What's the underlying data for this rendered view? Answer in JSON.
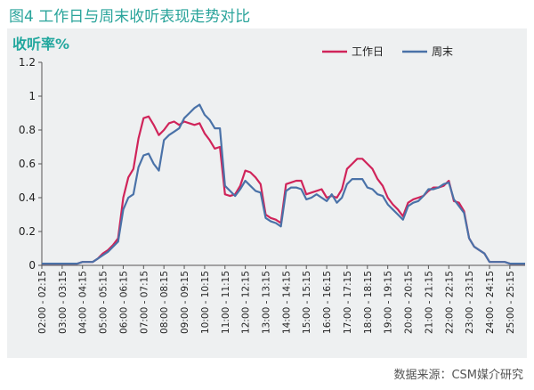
{
  "figure": {
    "title": "图4 工作日与周末收听表现走势对比",
    "source": "数据来源：CSM媒介研究"
  },
  "chart_data": {
    "type": "line",
    "title": "",
    "xlabel": "",
    "ylabel": "收听率%",
    "ylim": [
      0,
      1.2
    ],
    "yticks": [
      "0",
      "0.2",
      "0.4",
      "0.6",
      "0.8",
      "1",
      "1.2"
    ],
    "grid": false,
    "legend_position": "top-right",
    "x": [
      "02:00-02:15",
      "02:15-02:30",
      "02:30-02:45",
      "02:45-03:00",
      "03:00-03:15",
      "03:15-03:30",
      "03:30-03:45",
      "03:45-04:00",
      "04:00-04:15",
      "04:15-04:30",
      "04:30-04:45",
      "04:45-05:00",
      "05:00-05:15",
      "05:15-05:30",
      "05:30-05:45",
      "05:45-06:00",
      "06:00-06:15",
      "06:15-06:30",
      "06:30-06:45",
      "06:45-07:00",
      "07:00-07:15",
      "07:15-07:30",
      "07:30-07:45",
      "07:45-08:00",
      "08:00-08:15",
      "08:15-08:30",
      "08:30-08:45",
      "08:45-09:00",
      "09:00-09:15",
      "09:15-09:30",
      "09:30-09:45",
      "09:45-10:00",
      "10:00-10:15",
      "10:15-10:30",
      "10:30-10:45",
      "10:45-11:00",
      "11:00-11:15",
      "11:15-11:30",
      "11:30-11:45",
      "11:45-12:00",
      "12:00-12:15",
      "12:15-12:30",
      "12:30-12:45",
      "12:45-13:00",
      "13:00-13:15",
      "13:15-13:30",
      "13:30-13:45",
      "13:45-14:00",
      "14:00-14:15",
      "14:15-14:30",
      "14:30-14:45",
      "14:45-15:00",
      "15:00-15:15",
      "15:15-15:30",
      "15:30-15:45",
      "15:45-16:00",
      "16:00-16:15",
      "16:15-16:30",
      "16:30-16:45",
      "16:45-17:00",
      "17:00-17:15",
      "17:15-17:30",
      "17:30-17:45",
      "17:45-18:00",
      "18:00-18:15",
      "18:15-18:30",
      "18:30-18:45",
      "18:45-19:00",
      "19:00-19:15",
      "19:15-19:30",
      "19:30-19:45",
      "19:45-20:00",
      "20:00-20:15",
      "20:15-20:30",
      "20:30-20:45",
      "20:45-21:00",
      "21:00-21:15",
      "21:15-21:30",
      "21:30-21:45",
      "21:45-22:00",
      "22:00-22:15",
      "22:15-22:30",
      "22:30-22:45",
      "22:45-23:00",
      "23:00-23:15",
      "23:15-23:30",
      "23:30-23:45",
      "23:45-24:00",
      "24:00-24:15",
      "24:15-24:30",
      "24:30-24:45",
      "24:45-25:00",
      "25:00-25:15",
      "25:15-25:30",
      "25:30-25:45",
      "25:45-26:00"
    ],
    "xtick_labels": [
      "02:00 - 02:15",
      "03:00 - 03:15",
      "04:00 - 04:15",
      "05:00 - 05:15",
      "06:00 - 06:15",
      "07:00 - 07:15",
      "08:00 - 08:15",
      "09:00 - 09:15",
      "10:00 - 10:15",
      "11:00 - 11:15",
      "12:00 - 12:15",
      "13:00 - 13:15",
      "14:00 - 14:15",
      "15:00 - 15:15",
      "16:00 - 16:15",
      "17:00 - 17:15",
      "18:00 - 18:15",
      "19:00 - 19:15",
      "20:00 - 20:15",
      "21:00 - 21:15",
      "22:00 - 22:15",
      "23:00 - 23:15",
      "24:00 - 24:15",
      "25:00 - 25:15"
    ],
    "series": [
      {
        "name": "工作日",
        "color": "#d0245a",
        "values": [
          0.01,
          0.01,
          0.01,
          0.01,
          0.01,
          0.01,
          0.01,
          0.01,
          0.02,
          0.02,
          0.02,
          0.04,
          0.07,
          0.09,
          0.12,
          0.16,
          0.4,
          0.52,
          0.57,
          0.75,
          0.87,
          0.88,
          0.83,
          0.77,
          0.8,
          0.84,
          0.85,
          0.83,
          0.85,
          0.84,
          0.83,
          0.84,
          0.78,
          0.74,
          0.69,
          0.7,
          0.42,
          0.41,
          0.42,
          0.47,
          0.56,
          0.55,
          0.52,
          0.48,
          0.3,
          0.28,
          0.27,
          0.25,
          0.48,
          0.49,
          0.5,
          0.5,
          0.42,
          0.43,
          0.44,
          0.45,
          0.4,
          0.41,
          0.4,
          0.45,
          0.57,
          0.6,
          0.63,
          0.63,
          0.6,
          0.57,
          0.51,
          0.47,
          0.4,
          0.36,
          0.33,
          0.29,
          0.37,
          0.39,
          0.4,
          0.41,
          0.44,
          0.46,
          0.46,
          0.47,
          0.5,
          0.38,
          0.37,
          0.32,
          0.16,
          0.11,
          0.09,
          0.07,
          0.02,
          0.02,
          0.02,
          0.02,
          0.01,
          0.01,
          0.01,
          0.01
        ]
      },
      {
        "name": "周末",
        "color": "#4a72a8",
        "values": [
          0.01,
          0.01,
          0.01,
          0.01,
          0.01,
          0.01,
          0.01,
          0.01,
          0.02,
          0.02,
          0.02,
          0.04,
          0.06,
          0.08,
          0.11,
          0.14,
          0.33,
          0.4,
          0.42,
          0.58,
          0.65,
          0.66,
          0.6,
          0.56,
          0.74,
          0.77,
          0.79,
          0.81,
          0.87,
          0.9,
          0.93,
          0.95,
          0.89,
          0.86,
          0.81,
          0.81,
          0.47,
          0.44,
          0.41,
          0.45,
          0.5,
          0.47,
          0.44,
          0.43,
          0.28,
          0.26,
          0.25,
          0.23,
          0.44,
          0.46,
          0.46,
          0.45,
          0.39,
          0.4,
          0.42,
          0.4,
          0.38,
          0.42,
          0.37,
          0.4,
          0.48,
          0.51,
          0.51,
          0.51,
          0.46,
          0.45,
          0.42,
          0.41,
          0.36,
          0.33,
          0.3,
          0.27,
          0.35,
          0.37,
          0.38,
          0.41,
          0.45,
          0.45,
          0.46,
          0.48,
          0.49,
          0.39,
          0.35,
          0.31,
          0.16,
          0.11,
          0.09,
          0.07,
          0.02,
          0.02,
          0.02,
          0.02,
          0.01,
          0.01,
          0.01,
          0.01
        ]
      }
    ]
  }
}
